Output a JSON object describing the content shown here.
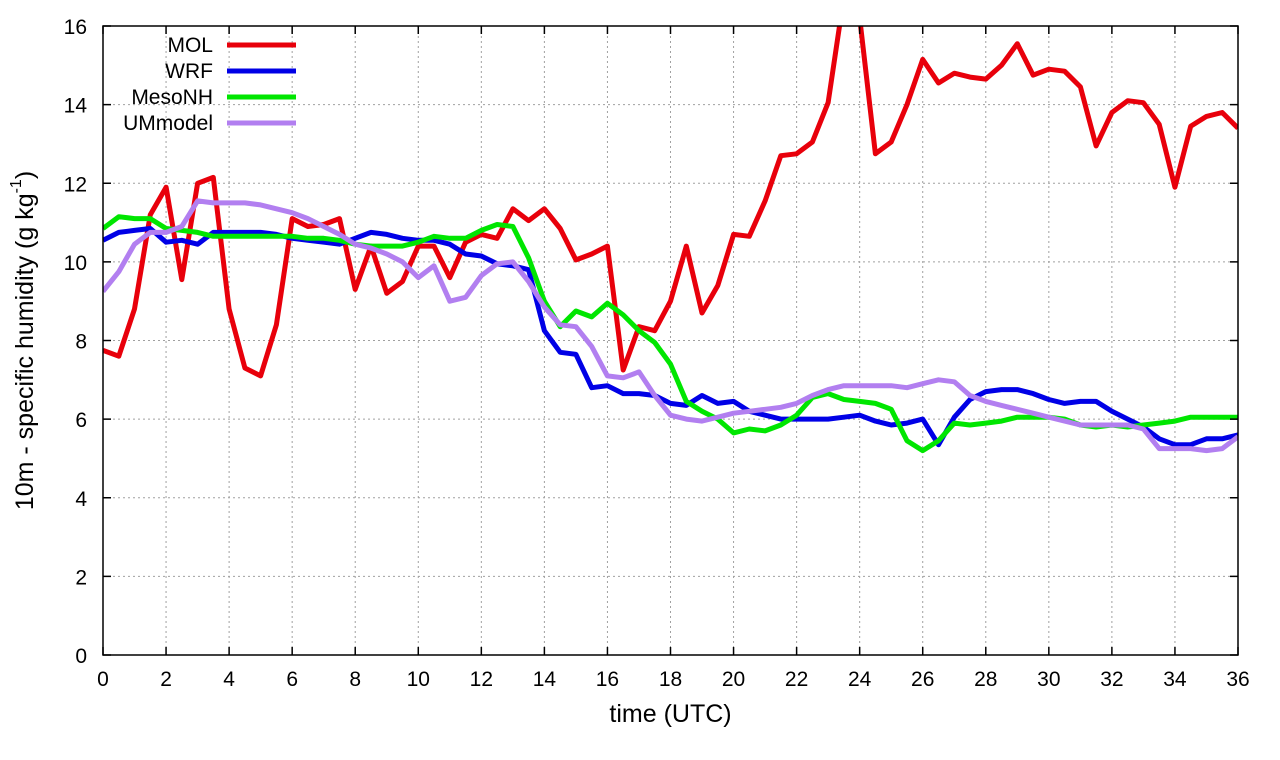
{
  "chart_data": {
    "type": "line",
    "xlabel": "time (UTC)",
    "ylabel": "10m - specific humidity (g kg",
    "ylabel_sup": "-1",
    "ylabel_close": ")",
    "xlim": [
      0,
      36
    ],
    "ylim": [
      0,
      16
    ],
    "x_ticks": [
      0,
      2,
      4,
      6,
      8,
      10,
      12,
      14,
      16,
      18,
      20,
      22,
      24,
      26,
      28,
      30,
      32,
      34,
      36
    ],
    "y_ticks": [
      0,
      2,
      4,
      6,
      8,
      10,
      12,
      14,
      16
    ],
    "grid": true,
    "legend_position": "top-left",
    "series": [
      {
        "name": "MOL",
        "color": "#e8000b",
        "points": [
          [
            0,
            7.75
          ],
          [
            0.5,
            7.6
          ],
          [
            1,
            8.8
          ],
          [
            1.5,
            11.2
          ],
          [
            2,
            11.9
          ],
          [
            2.5,
            9.55
          ],
          [
            3,
            12.0
          ],
          [
            3.5,
            12.15
          ],
          [
            4,
            8.8
          ],
          [
            4.5,
            7.3
          ],
          [
            5,
            7.1
          ],
          [
            5.5,
            8.4
          ],
          [
            6,
            11.1
          ],
          [
            6.5,
            10.9
          ],
          [
            7,
            10.95
          ],
          [
            7.5,
            11.1
          ],
          [
            8,
            9.3
          ],
          [
            8.5,
            10.4
          ],
          [
            9,
            9.2
          ],
          [
            9.5,
            9.5
          ],
          [
            10,
            10.4
          ],
          [
            10.5,
            10.4
          ],
          [
            11,
            9.6
          ],
          [
            11.5,
            10.5
          ],
          [
            12,
            10.7
          ],
          [
            12.5,
            10.6
          ],
          [
            13,
            11.35
          ],
          [
            13.5,
            11.05
          ],
          [
            14,
            11.35
          ],
          [
            14.5,
            10.85
          ],
          [
            15,
            10.05
          ],
          [
            15.5,
            10.2
          ],
          [
            16,
            10.4
          ],
          [
            16.5,
            7.25
          ],
          [
            17,
            8.35
          ],
          [
            17.5,
            8.25
          ],
          [
            18,
            9.0
          ],
          [
            18.5,
            10.4
          ],
          [
            19,
            8.7
          ],
          [
            19.5,
            9.4
          ],
          [
            20,
            10.7
          ],
          [
            20.5,
            10.65
          ],
          [
            21,
            11.55
          ],
          [
            21.5,
            12.7
          ],
          [
            22,
            12.75
          ],
          [
            22.5,
            13.05
          ],
          [
            23,
            14.05
          ],
          [
            23.4,
            16.2
          ],
          [
            23.7,
            16.2
          ],
          [
            24,
            16.2
          ],
          [
            24.5,
            12.75
          ],
          [
            25,
            13.05
          ],
          [
            25.5,
            14.0
          ],
          [
            26,
            15.15
          ],
          [
            26.5,
            14.55
          ],
          [
            27,
            14.8
          ],
          [
            27.5,
            14.7
          ],
          [
            28,
            14.65
          ],
          [
            28.5,
            15.0
          ],
          [
            29,
            15.55
          ],
          [
            29.5,
            14.75
          ],
          [
            30,
            14.9
          ],
          [
            30.5,
            14.85
          ],
          [
            31,
            14.45
          ],
          [
            31.5,
            12.95
          ],
          [
            32,
            13.8
          ],
          [
            32.5,
            14.1
          ],
          [
            33,
            14.05
          ],
          [
            33.5,
            13.5
          ],
          [
            34,
            11.9
          ],
          [
            34.5,
            13.45
          ],
          [
            35,
            13.7
          ],
          [
            35.5,
            13.8
          ],
          [
            36,
            13.4
          ]
        ]
      },
      {
        "name": "WRF",
        "color": "#0000e6",
        "points": [
          [
            0,
            10.55
          ],
          [
            0.5,
            10.75
          ],
          [
            1,
            10.8
          ],
          [
            1.5,
            10.85
          ],
          [
            2,
            10.5
          ],
          [
            2.5,
            10.55
          ],
          [
            3,
            10.45
          ],
          [
            3.5,
            10.75
          ],
          [
            4,
            10.75
          ],
          [
            4.5,
            10.75
          ],
          [
            5,
            10.75
          ],
          [
            5.5,
            10.7
          ],
          [
            6,
            10.6
          ],
          [
            6.5,
            10.55
          ],
          [
            7,
            10.5
          ],
          [
            7.5,
            10.45
          ],
          [
            8,
            10.6
          ],
          [
            8.5,
            10.75
          ],
          [
            9,
            10.7
          ],
          [
            9.5,
            10.6
          ],
          [
            10,
            10.55
          ],
          [
            10.5,
            10.55
          ],
          [
            11,
            10.45
          ],
          [
            11.5,
            10.2
          ],
          [
            12,
            10.15
          ],
          [
            12.5,
            9.95
          ],
          [
            13,
            9.9
          ],
          [
            13.5,
            9.8
          ],
          [
            14,
            8.25
          ],
          [
            14.5,
            7.7
          ],
          [
            15,
            7.65
          ],
          [
            15.5,
            6.8
          ],
          [
            16,
            6.85
          ],
          [
            16.5,
            6.65
          ],
          [
            17,
            6.65
          ],
          [
            17.5,
            6.6
          ],
          [
            18,
            6.4
          ],
          [
            18.5,
            6.35
          ],
          [
            19,
            6.6
          ],
          [
            19.5,
            6.4
          ],
          [
            20,
            6.45
          ],
          [
            20.5,
            6.2
          ],
          [
            21,
            6.1
          ],
          [
            21.5,
            6.0
          ],
          [
            22,
            6.0
          ],
          [
            22.5,
            6.0
          ],
          [
            23,
            6.0
          ],
          [
            23.5,
            6.05
          ],
          [
            24,
            6.1
          ],
          [
            24.5,
            5.95
          ],
          [
            25,
            5.85
          ],
          [
            25.5,
            5.9
          ],
          [
            26,
            6.0
          ],
          [
            26.5,
            5.35
          ],
          [
            27,
            6.05
          ],
          [
            27.5,
            6.5
          ],
          [
            28,
            6.7
          ],
          [
            28.5,
            6.75
          ],
          [
            29,
            6.75
          ],
          [
            29.5,
            6.65
          ],
          [
            30,
            6.5
          ],
          [
            30.5,
            6.4
          ],
          [
            31,
            6.45
          ],
          [
            31.5,
            6.45
          ],
          [
            32,
            6.2
          ],
          [
            32.5,
            6.0
          ],
          [
            33,
            5.8
          ],
          [
            33.5,
            5.5
          ],
          [
            34,
            5.35
          ],
          [
            34.5,
            5.35
          ],
          [
            35,
            5.5
          ],
          [
            35.5,
            5.5
          ],
          [
            36,
            5.6
          ]
        ]
      },
      {
        "name": "MesoNH",
        "color": "#00e600",
        "points": [
          [
            0,
            10.85
          ],
          [
            0.5,
            11.15
          ],
          [
            1,
            11.1
          ],
          [
            1.5,
            11.1
          ],
          [
            2,
            10.85
          ],
          [
            2.5,
            10.8
          ],
          [
            3,
            10.75
          ],
          [
            3.5,
            10.65
          ],
          [
            4,
            10.65
          ],
          [
            4.5,
            10.65
          ],
          [
            5,
            10.65
          ],
          [
            5.5,
            10.65
          ],
          [
            6,
            10.65
          ],
          [
            6.5,
            10.6
          ],
          [
            7,
            10.6
          ],
          [
            7.5,
            10.55
          ],
          [
            8,
            10.45
          ],
          [
            8.5,
            10.4
          ],
          [
            9,
            10.4
          ],
          [
            9.5,
            10.4
          ],
          [
            10,
            10.5
          ],
          [
            10.5,
            10.65
          ],
          [
            11,
            10.6
          ],
          [
            11.5,
            10.6
          ],
          [
            12,
            10.8
          ],
          [
            12.5,
            10.95
          ],
          [
            13,
            10.9
          ],
          [
            13.5,
            10.1
          ],
          [
            14,
            9.0
          ],
          [
            14.5,
            8.35
          ],
          [
            15,
            8.75
          ],
          [
            15.5,
            8.6
          ],
          [
            16,
            8.95
          ],
          [
            16.5,
            8.65
          ],
          [
            17,
            8.25
          ],
          [
            17.5,
            7.95
          ],
          [
            18,
            7.4
          ],
          [
            18.5,
            6.45
          ],
          [
            19,
            6.2
          ],
          [
            19.5,
            6.0
          ],
          [
            20,
            5.65
          ],
          [
            20.5,
            5.75
          ],
          [
            21,
            5.7
          ],
          [
            21.5,
            5.85
          ],
          [
            22,
            6.1
          ],
          [
            22.5,
            6.55
          ],
          [
            23,
            6.65
          ],
          [
            23.5,
            6.5
          ],
          [
            24,
            6.45
          ],
          [
            24.5,
            6.4
          ],
          [
            25,
            6.25
          ],
          [
            25.5,
            5.45
          ],
          [
            26,
            5.2
          ],
          [
            26.5,
            5.45
          ],
          [
            27,
            5.9
          ],
          [
            27.5,
            5.85
          ],
          [
            28,
            5.9
          ],
          [
            28.5,
            5.95
          ],
          [
            29,
            6.05
          ],
          [
            29.5,
            6.05
          ],
          [
            30,
            6.05
          ],
          [
            30.5,
            6.0
          ],
          [
            31,
            5.85
          ],
          [
            31.5,
            5.8
          ],
          [
            32,
            5.85
          ],
          [
            32.5,
            5.8
          ],
          [
            33,
            5.85
          ],
          [
            33.5,
            5.9
          ],
          [
            34,
            5.95
          ],
          [
            34.5,
            6.05
          ],
          [
            35,
            6.05
          ],
          [
            35.5,
            6.05
          ],
          [
            36,
            6.05
          ]
        ]
      },
      {
        "name": "UMmodel",
        "color": "#b27ff0",
        "points": [
          [
            0,
            9.25
          ],
          [
            0.5,
            9.75
          ],
          [
            1,
            10.45
          ],
          [
            1.5,
            10.75
          ],
          [
            2,
            10.75
          ],
          [
            2.5,
            10.9
          ],
          [
            3,
            11.55
          ],
          [
            3.5,
            11.5
          ],
          [
            4,
            11.5
          ],
          [
            4.5,
            11.5
          ],
          [
            5,
            11.45
          ],
          [
            5.5,
            11.35
          ],
          [
            6,
            11.25
          ],
          [
            6.5,
            11.1
          ],
          [
            7,
            10.9
          ],
          [
            7.5,
            10.7
          ],
          [
            8,
            10.45
          ],
          [
            8.5,
            10.35
          ],
          [
            9,
            10.2
          ],
          [
            9.5,
            10.0
          ],
          [
            10,
            9.6
          ],
          [
            10.5,
            9.9
          ],
          [
            11,
            9.0
          ],
          [
            11.5,
            9.1
          ],
          [
            12,
            9.65
          ],
          [
            12.5,
            9.95
          ],
          [
            13,
            10.0
          ],
          [
            13.5,
            9.5
          ],
          [
            14,
            8.85
          ],
          [
            14.5,
            8.4
          ],
          [
            15,
            8.35
          ],
          [
            15.5,
            7.85
          ],
          [
            16,
            7.1
          ],
          [
            16.5,
            7.05
          ],
          [
            17,
            7.2
          ],
          [
            17.5,
            6.6
          ],
          [
            18,
            6.1
          ],
          [
            18.5,
            6.0
          ],
          [
            19,
            5.95
          ],
          [
            19.5,
            6.05
          ],
          [
            20,
            6.15
          ],
          [
            20.5,
            6.2
          ],
          [
            21,
            6.25
          ],
          [
            21.5,
            6.3
          ],
          [
            22,
            6.4
          ],
          [
            22.5,
            6.6
          ],
          [
            23,
            6.75
          ],
          [
            23.5,
            6.85
          ],
          [
            24,
            6.85
          ],
          [
            24.5,
            6.85
          ],
          [
            25,
            6.85
          ],
          [
            25.5,
            6.8
          ],
          [
            26,
            6.9
          ],
          [
            26.5,
            7.0
          ],
          [
            27,
            6.95
          ],
          [
            27.5,
            6.6
          ],
          [
            28,
            6.45
          ],
          [
            28.5,
            6.35
          ],
          [
            29,
            6.25
          ],
          [
            29.5,
            6.15
          ],
          [
            30,
            6.05
          ],
          [
            30.5,
            5.95
          ],
          [
            31,
            5.85
          ],
          [
            31.5,
            5.85
          ],
          [
            32,
            5.85
          ],
          [
            32.5,
            5.85
          ],
          [
            33,
            5.75
          ],
          [
            33.5,
            5.25
          ],
          [
            34,
            5.25
          ],
          [
            34.5,
            5.25
          ],
          [
            35,
            5.2
          ],
          [
            35.5,
            5.25
          ],
          [
            36,
            5.55
          ]
        ]
      }
    ]
  }
}
